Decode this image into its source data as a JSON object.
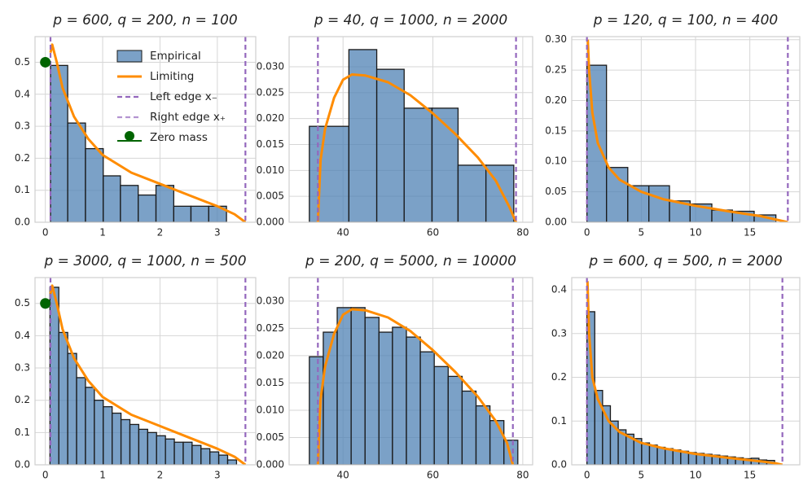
{
  "chart_data": [
    {
      "type": "histogram",
      "title": "p = 600, q = 200, n = 100",
      "bins": [
        0.09,
        0.39,
        0.7,
        1.01,
        1.31,
        1.62,
        1.93,
        2.24,
        2.54,
        2.85,
        3.16
      ],
      "values": [
        0.49,
        0.31,
        0.23,
        0.145,
        0.115,
        0.085,
        0.115,
        0.05,
        0.05,
        0.05
      ],
      "curve": {
        "x": [
          0.09,
          0.12,
          0.2,
          0.3,
          0.5,
          0.75,
          1,
          1.5,
          2,
          2.5,
          3,
          3.3,
          3.49
        ],
        "y": [
          0.53,
          0.555,
          0.5,
          0.42,
          0.33,
          0.26,
          0.21,
          0.155,
          0.12,
          0.085,
          0.05,
          0.025,
          0
        ]
      },
      "edges": [
        0.09,
        3.49
      ],
      "zero_mass": {
        "x": 0,
        "y": 0.5
      },
      "xlim": [
        -0.18,
        3.67
      ],
      "ylim": [
        0,
        0.58
      ],
      "xticks": [
        0,
        1,
        2,
        3
      ],
      "yticks": [
        {
          "value": 0,
          "label": "0.0"
        },
        {
          "value": 0.1,
          "label": "0.1"
        },
        {
          "value": 0.2,
          "label": "0.2"
        },
        {
          "value": 0.3,
          "label": "0.3"
        },
        {
          "value": 0.4,
          "label": "0.4"
        },
        {
          "value": 0.5,
          "label": "0.5"
        }
      ],
      "color": "#4f81b4",
      "line_color": "#ff8c00",
      "edge_color": "#9467bd",
      "zero_color": "#006400",
      "grid": true,
      "legend": [
        "Empirical",
        "Limiting",
        "Left edge x₋",
        "Right edge x₊",
        "Zero mass"
      ],
      "legend_loc": "upper right"
    },
    {
      "type": "histogram",
      "title": "p = 40, q = 1000, n = 2000",
      "bins": [
        32.5,
        41.3,
        47.5,
        53.6,
        59.8,
        65.6,
        71.8,
        78.0
      ],
      "values": [
        0.0185,
        0.0333,
        0.0295,
        0.022,
        0.022,
        0.011,
        0.011
      ],
      "curve": {
        "x": [
          34.4,
          35,
          36,
          38,
          40,
          42,
          45,
          50,
          55,
          60,
          65,
          70,
          74,
          77,
          78.5
        ],
        "y": [
          0,
          0.012,
          0.018,
          0.024,
          0.0275,
          0.0285,
          0.0283,
          0.027,
          0.0245,
          0.021,
          0.017,
          0.0125,
          0.008,
          0.003,
          0
        ]
      },
      "edges": [
        34.4,
        78.5
      ],
      "xlim": [
        28,
        82.2
      ],
      "ylim": [
        0,
        0.0358
      ],
      "xticks": [
        40,
        60,
        80
      ],
      "yticks": [
        {
          "value": 0,
          "label": "0.000"
        },
        {
          "value": 0.005,
          "label": "0.005"
        },
        {
          "value": 0.01,
          "label": "0.010"
        },
        {
          "value": 0.015,
          "label": "0.015"
        },
        {
          "value": 0.02,
          "label": "0.020"
        },
        {
          "value": 0.025,
          "label": "0.025"
        },
        {
          "value": 0.03,
          "label": "0.030"
        }
      ],
      "color": "#4f81b4",
      "line_color": "#ff8c00",
      "edge_color": "#9467bd",
      "grid": true
    },
    {
      "type": "histogram",
      "title": "p = 120, q = 100, n = 400",
      "bins": [
        0,
        1.8,
        3.76,
        5.7,
        7.6,
        9.5,
        11.5,
        13.4,
        15.4,
        17.4
      ],
      "values": [
        0.258,
        0.09,
        0.06,
        0.06,
        0.035,
        0.03,
        0.02,
        0.018,
        0.012
      ],
      "curve": {
        "x": [
          0.08,
          0.2,
          0.5,
          1,
          2,
          3,
          5,
          7,
          10,
          13,
          16,
          17.5,
          18.5
        ],
        "y": [
          0.3,
          0.25,
          0.18,
          0.13,
          0.09,
          0.07,
          0.05,
          0.038,
          0.027,
          0.018,
          0.01,
          0.004,
          0
        ]
      },
      "edges": [
        0,
        18.5
      ],
      "xlim": [
        -1.4,
        19.6
      ],
      "ylim": [
        0,
        0.305
      ],
      "xticks": [
        0,
        5,
        10,
        15
      ],
      "yticks": [
        {
          "value": 0,
          "label": "0.00"
        },
        {
          "value": 0.05,
          "label": "0.05"
        },
        {
          "value": 0.1,
          "label": "0.10"
        },
        {
          "value": 0.15,
          "label": "0.15"
        },
        {
          "value": 0.2,
          "label": "0.20"
        },
        {
          "value": 0.25,
          "label": "0.25"
        },
        {
          "value": 0.3,
          "label": "0.30"
        }
      ],
      "color": "#4f81b4",
      "line_color": "#ff8c00",
      "edge_color": "#9467bd",
      "grid": true
    },
    {
      "type": "histogram",
      "title": "p = 3000, q = 1000, n = 500",
      "bins": [
        0.08,
        0.235,
        0.39,
        0.545,
        0.7,
        0.855,
        1.01,
        1.165,
        1.32,
        1.475,
        1.63,
        1.785,
        1.94,
        2.095,
        2.25,
        2.405,
        2.56,
        2.715,
        2.87,
        3.025,
        3.18,
        3.335
      ],
      "values": [
        0.55,
        0.41,
        0.345,
        0.27,
        0.24,
        0.2,
        0.18,
        0.16,
        0.14,
        0.125,
        0.11,
        0.1,
        0.09,
        0.08,
        0.07,
        0.07,
        0.06,
        0.05,
        0.04,
        0.03,
        0.015
      ],
      "curve": {
        "x": [
          0.09,
          0.12,
          0.2,
          0.3,
          0.5,
          0.75,
          1,
          1.5,
          2,
          2.5,
          3,
          3.3,
          3.49
        ],
        "y": [
          0.53,
          0.555,
          0.5,
          0.42,
          0.33,
          0.26,
          0.21,
          0.155,
          0.12,
          0.085,
          0.05,
          0.025,
          0
        ]
      },
      "edges": [
        0.09,
        3.49
      ],
      "zero_mass": {
        "x": 0,
        "y": 0.5
      },
      "xlim": [
        -0.18,
        3.67
      ],
      "ylim": [
        0,
        0.58
      ],
      "xticks": [
        0,
        1,
        2,
        3
      ],
      "yticks": [
        {
          "value": 0,
          "label": "0.0"
        },
        {
          "value": 0.1,
          "label": "0.1"
        },
        {
          "value": 0.2,
          "label": "0.2"
        },
        {
          "value": 0.3,
          "label": "0.3"
        },
        {
          "value": 0.4,
          "label": "0.4"
        },
        {
          "value": 0.5,
          "label": "0.5"
        }
      ],
      "color": "#4f81b4",
      "line_color": "#ff8c00",
      "edge_color": "#9467bd",
      "zero_color": "#006400",
      "grid": true
    },
    {
      "type": "histogram",
      "title": "p = 200, q = 5000, n = 10000",
      "bins": [
        32.5,
        35.6,
        38.7,
        41.8,
        44.9,
        48.0,
        51.0,
        54.1,
        57.2,
        60.3,
        63.4,
        66.5,
        69.6,
        72.7,
        75.8,
        78.9
      ],
      "values": [
        0.0198,
        0.0243,
        0.0288,
        0.0288,
        0.027,
        0.0243,
        0.0252,
        0.0234,
        0.0207,
        0.018,
        0.0162,
        0.0135,
        0.0108,
        0.0081,
        0.0045
      ],
      "curve": {
        "x": [
          34.4,
          35,
          36,
          38,
          40,
          42,
          45,
          50,
          55,
          60,
          65,
          70,
          74,
          76.5,
          77.8
        ],
        "y": [
          0,
          0.012,
          0.018,
          0.024,
          0.0275,
          0.0285,
          0.0283,
          0.027,
          0.0245,
          0.021,
          0.017,
          0.0125,
          0.008,
          0.004,
          0
        ]
      },
      "edges": [
        34.4,
        77.8
      ],
      "xlim": [
        28,
        82.2
      ],
      "ylim": [
        0,
        0.0343
      ],
      "xticks": [
        40,
        60,
        80
      ],
      "yticks": [
        {
          "value": 0,
          "label": "0.000"
        },
        {
          "value": 0.005,
          "label": "0.005"
        },
        {
          "value": 0.01,
          "label": "0.010"
        },
        {
          "value": 0.015,
          "label": "0.015"
        },
        {
          "value": 0.02,
          "label": "0.020"
        },
        {
          "value": 0.025,
          "label": "0.025"
        },
        {
          "value": 0.03,
          "label": "0.030"
        }
      ],
      "color": "#4f81b4",
      "line_color": "#ff8c00",
      "edge_color": "#9467bd",
      "grid": true
    },
    {
      "type": "histogram",
      "title": "p = 600, q = 500, n = 2000",
      "bins": [
        0,
        0.72,
        1.44,
        2.16,
        2.88,
        3.6,
        4.32,
        5.04,
        5.76,
        6.48,
        7.2,
        7.92,
        8.64,
        9.36,
        10.08,
        10.8,
        11.52,
        12.24,
        12.96,
        13.68,
        14.4,
        15.12,
        15.84,
        16.56,
        17.28
      ],
      "values": [
        0.35,
        0.17,
        0.135,
        0.1,
        0.08,
        0.07,
        0.06,
        0.05,
        0.045,
        0.04,
        0.037,
        0.034,
        0.031,
        0.028,
        0.026,
        0.024,
        0.022,
        0.02,
        0.018,
        0.016,
        0.014,
        0.015,
        0.011,
        0.01
      ],
      "curve": {
        "x": [
          0.05,
          0.2,
          0.5,
          1,
          2,
          3,
          5,
          7,
          10,
          13,
          16,
          17.5,
          18
        ],
        "y": [
          0.42,
          0.3,
          0.2,
          0.15,
          0.1,
          0.075,
          0.05,
          0.038,
          0.025,
          0.016,
          0.008,
          0.003,
          0
        ]
      },
      "edges": [
        0,
        18
      ],
      "xlim": [
        -1.4,
        19.6
      ],
      "ylim": [
        0,
        0.428
      ],
      "xticks": [
        0,
        5,
        10,
        15
      ],
      "yticks": [
        {
          "value": 0,
          "label": "0.0"
        },
        {
          "value": 0.1,
          "label": "0.1"
        },
        {
          "value": 0.2,
          "label": "0.2"
        },
        {
          "value": 0.3,
          "label": "0.3"
        },
        {
          "value": 0.4,
          "label": "0.4"
        }
      ],
      "color": "#4f81b4",
      "line_color": "#ff8c00",
      "edge_color": "#9467bd",
      "grid": true
    }
  ]
}
